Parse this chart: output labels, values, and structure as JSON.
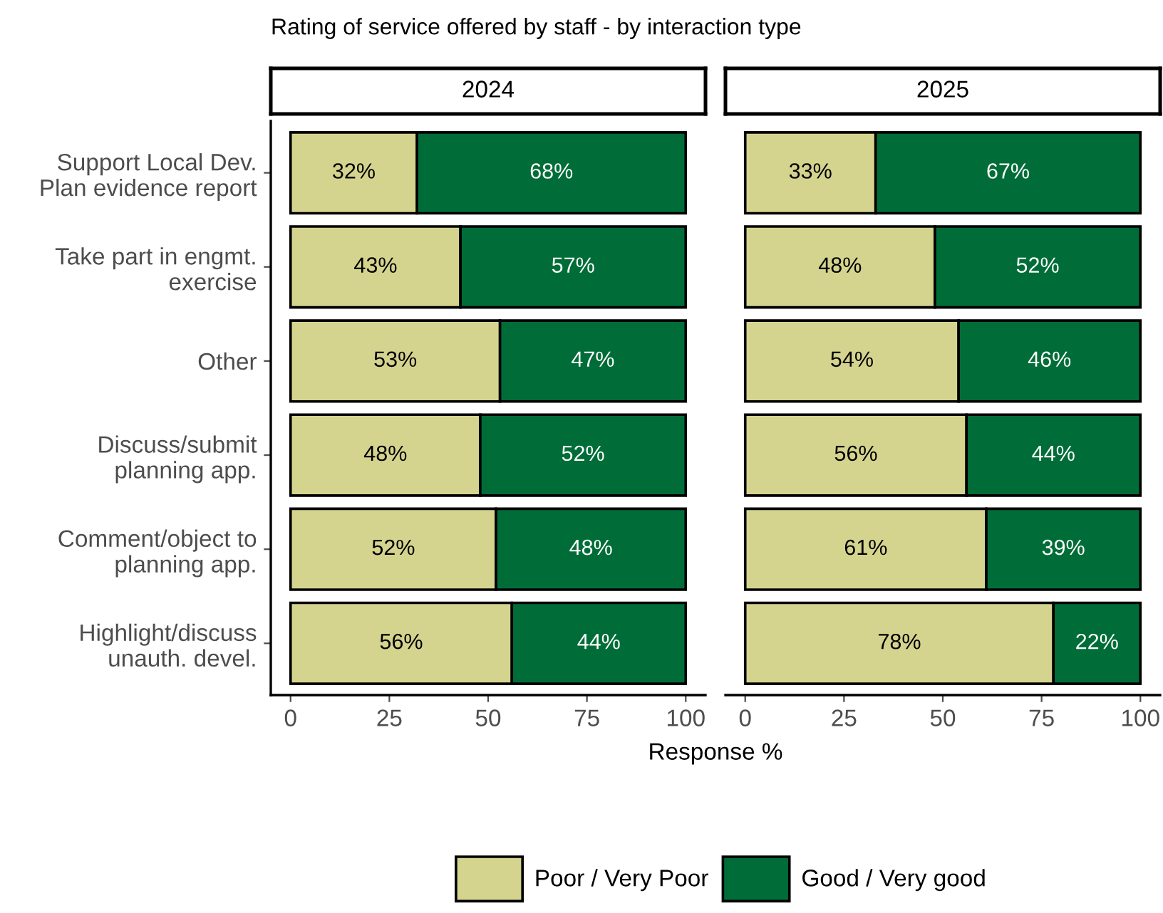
{
  "chart_data": [
    {
      "type": "bar",
      "orientation": "horizontal",
      "stacked": true,
      "title": "Rating of service offered by staff - by interaction type",
      "subtitle": "2024",
      "xlabel": "Response %",
      "categories": [
        "Support Local Dev. Plan evidence report",
        "Take part in engmt. exercise",
        "Other",
        "Discuss/submit planning app.",
        "Comment/object to planning app.",
        "Highlight/discuss unauth. devel."
      ],
      "series": [
        {
          "name": "Poor / Very Poor",
          "color": "#d5d48f",
          "values": [
            32,
            43,
            53,
            48,
            52,
            56
          ],
          "value_labels": [
            "32%",
            "43%",
            "53%",
            "48%",
            "52%",
            "56%"
          ]
        },
        {
          "name": "Good / Very good",
          "color": "#006d38",
          "values": [
            68,
            57,
            47,
            52,
            48,
            44
          ],
          "value_labels": [
            "68%",
            "57%",
            "47%",
            "52%",
            "48%",
            "44%"
          ]
        }
      ],
      "xlim": [
        -5,
        105
      ],
      "xticks": [
        0,
        25,
        50,
        75,
        100
      ],
      "grid": false,
      "legend": "bottom"
    },
    {
      "type": "bar",
      "orientation": "horizontal",
      "stacked": true,
      "subtitle": "2025",
      "categories": [
        null,
        null,
        null,
        null,
        null,
        null
      ],
      "series": [
        {
          "color": "#d5d48f",
          "values": [
            33,
            48,
            54,
            56,
            61,
            78
          ],
          "value_labels": [
            "33%",
            "48%",
            "54%",
            "56%",
            "61%",
            "78%"
          ]
        },
        {
          "color": "#006d38",
          "values": [
            67,
            52,
            46,
            44,
            39,
            22
          ],
          "value_labels": [
            "67%",
            "52%",
            "46%",
            "44%",
            "39%",
            "22%"
          ]
        }
      ],
      "xlim": [
        -5,
        105
      ],
      "xticks": [
        0,
        25,
        50,
        75,
        100
      ],
      "grid": false,
      "legend": false,
      "tick_labels": "x"
    }
  ]
}
